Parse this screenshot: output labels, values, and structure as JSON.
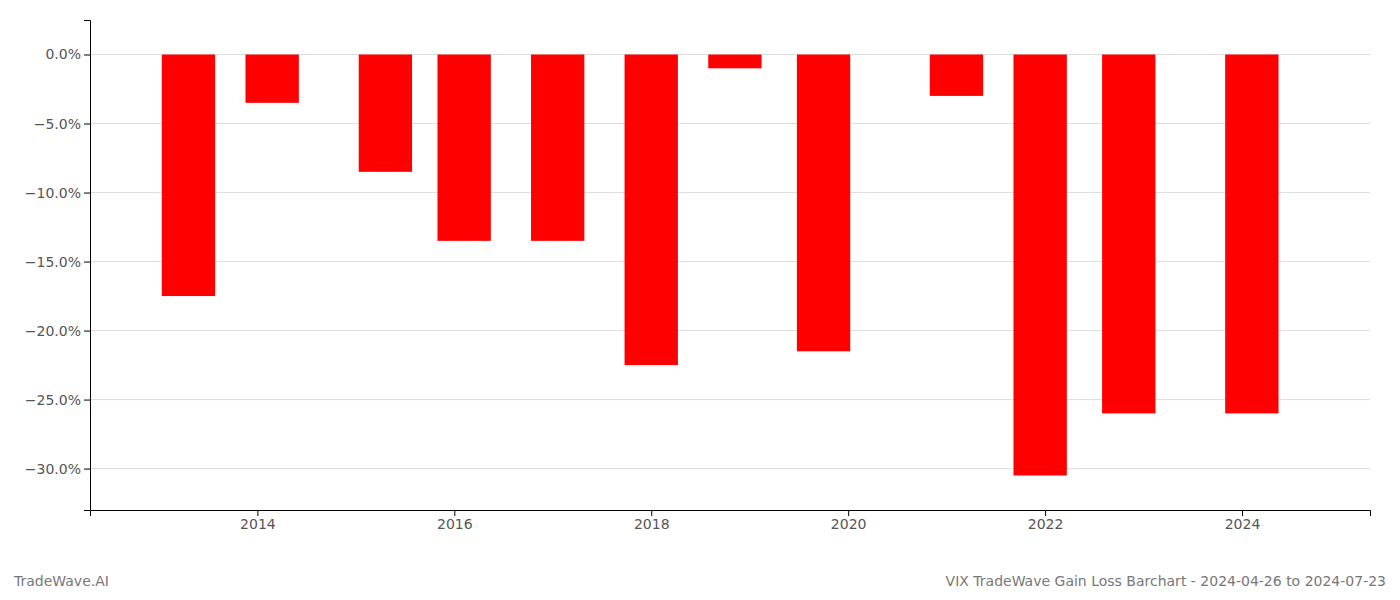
{
  "chart_data": {
    "type": "bar",
    "title": "VIX TradeWave Gain Loss Barchart - 2024-04-26 to 2024-07-23",
    "annotations": [
      "TradeWave.AI"
    ],
    "x": [
      2013.3,
      2014.15,
      2015.3,
      2016.1,
      2017.05,
      2018.0,
      2018.85,
      2019.75,
      2021.1,
      2021.95,
      2022.85,
      2024.1
    ],
    "values": [
      -17.5,
      -3.5,
      -8.5,
      -13.5,
      -13.5,
      -22.5,
      -1.0,
      -21.5,
      -3.0,
      -30.5,
      -26.0,
      -26.0
    ],
    "color": "#ff0000",
    "xlim": [
      2012.3,
      2025.3
    ],
    "xticks": [
      2014,
      2016,
      2018,
      2020,
      2022,
      2024
    ],
    "ylim": [
      -33,
      2.5
    ],
    "yticks": [
      {
        "value": 0.0,
        "label": "0.0%"
      },
      {
        "value": -5.0,
        "label": "−5.0%"
      },
      {
        "value": -10.0,
        "label": "−10.0%"
      },
      {
        "value": -15.0,
        "label": "−15.0%"
      },
      {
        "value": -20.0,
        "label": "−20.0%"
      },
      {
        "value": -25.0,
        "label": "−25.0%"
      },
      {
        "value": -30.0,
        "label": "−30.0%"
      }
    ],
    "grid": true
  }
}
